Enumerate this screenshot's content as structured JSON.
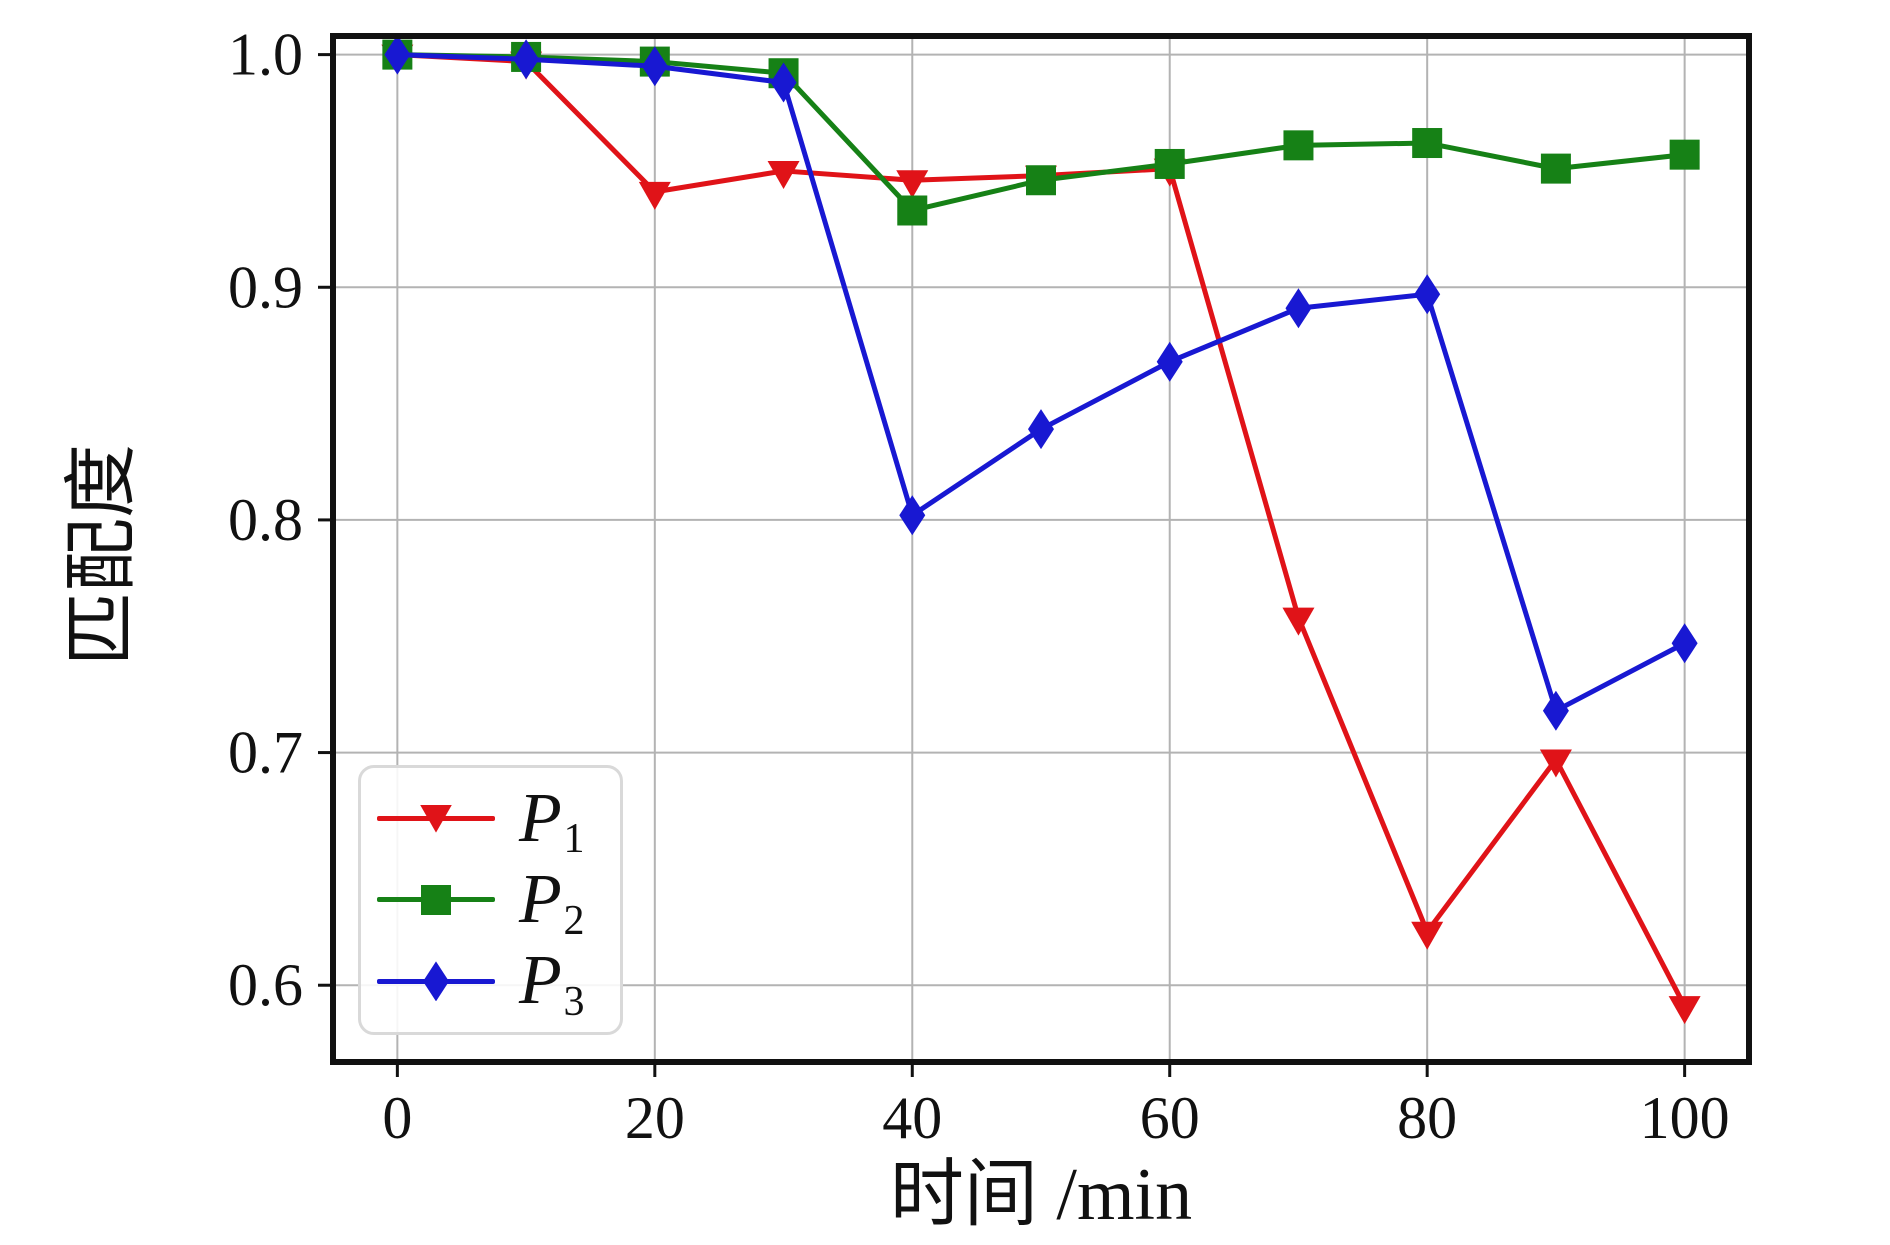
{
  "chart_data": {
    "type": "line",
    "title": "",
    "xlabel": "时间 /min",
    "ylabel": "匹配度",
    "grid": true,
    "grid_color": "#b3b3b3",
    "spine_color": "#111111",
    "background": "#ffffff",
    "legend_position": "lower-left",
    "xlim": [
      -5,
      105
    ],
    "ylim": [
      0.567,
      1.008
    ],
    "xticks": [
      0,
      20,
      40,
      60,
      80,
      100
    ],
    "xtick_labels": [
      "0",
      "20",
      "40",
      "60",
      "80",
      "100"
    ],
    "yticks": [
      1.0,
      0.9,
      0.8,
      0.7,
      0.6
    ],
    "ytick_labels": [
      "1.0",
      "0.9",
      "0.8",
      "0.7",
      "0.6"
    ],
    "x": [
      0,
      10,
      20,
      30,
      40,
      50,
      60,
      70,
      80,
      90,
      100
    ],
    "series": [
      {
        "id": "p1",
        "legend_main": "P",
        "legend_sub": "1",
        "color": "#e01318",
        "marker": "triangle-down",
        "values": [
          1.0,
          0.997,
          0.941,
          0.95,
          0.946,
          0.948,
          0.951,
          0.758,
          0.623,
          0.697,
          0.591
        ]
      },
      {
        "id": "p2",
        "legend_main": "P",
        "legend_sub": "2",
        "color": "#168116",
        "marker": "square",
        "values": [
          1.0,
          0.999,
          0.997,
          0.992,
          0.933,
          0.946,
          0.953,
          0.961,
          0.962,
          0.951,
          0.957
        ]
      },
      {
        "id": "p3",
        "legend_main": "P",
        "legend_sub": "3",
        "color": "#1818d2",
        "marker": "diamond",
        "values": [
          1.0,
          0.998,
          0.995,
          0.988,
          0.802,
          0.839,
          0.868,
          0.891,
          0.897,
          0.718,
          0.747
        ]
      }
    ]
  }
}
